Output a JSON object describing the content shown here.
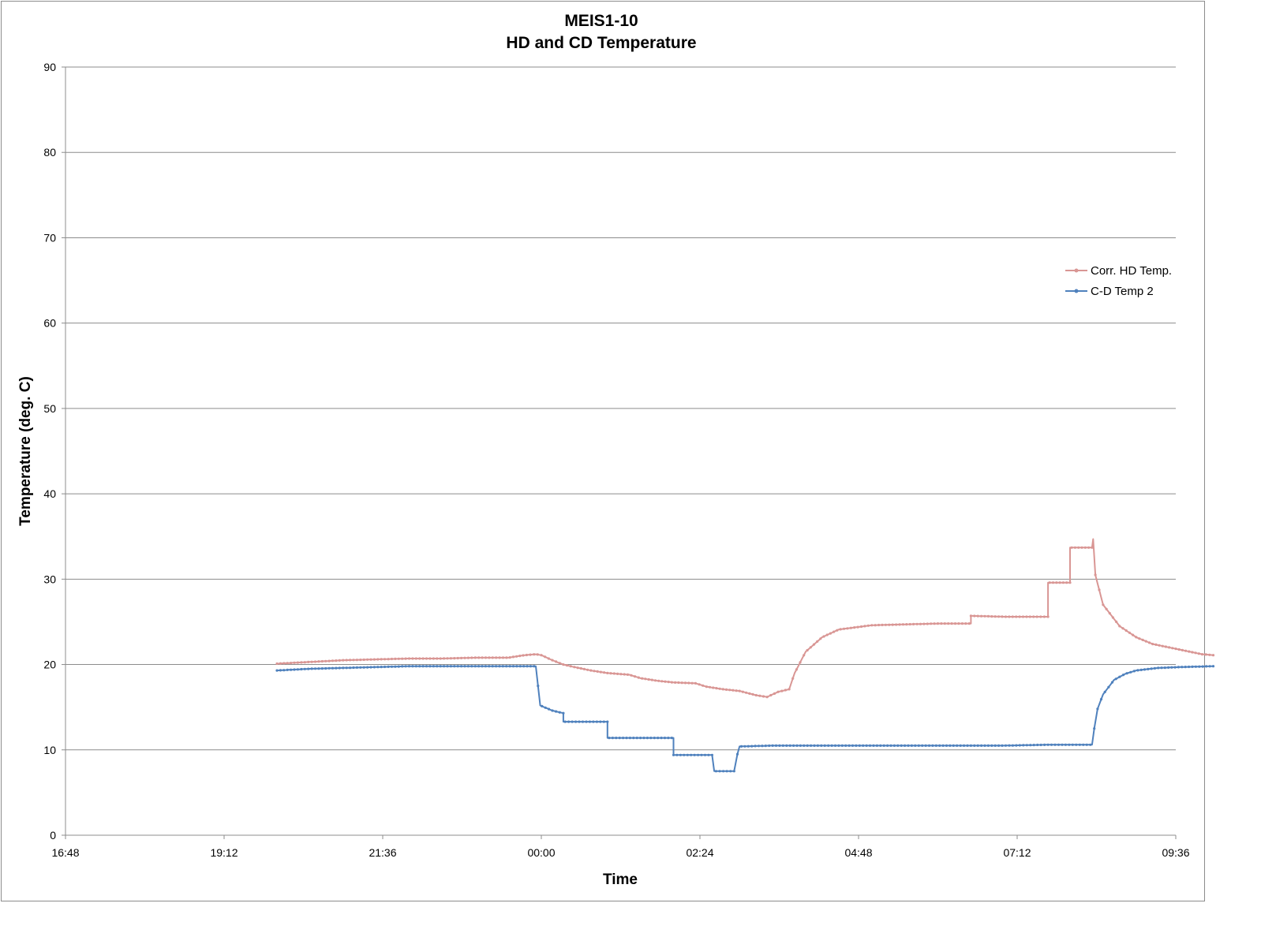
{
  "chart_data": {
    "type": "line",
    "title": [
      "MEIS1-10",
      "HD and CD Temperature"
    ],
    "xlabel": "Time",
    "ylabel": "Temperature (deg. C)",
    "ylim": [
      0,
      90
    ],
    "yticks": [
      0,
      10,
      20,
      30,
      40,
      50,
      60,
      70,
      80,
      90
    ],
    "xlim": [
      "16:48",
      "09:36"
    ],
    "xticks": [
      "16:48",
      "19:12",
      "21:36",
      "00:00",
      "02:24",
      "04:48",
      "07:12",
      "09:36"
    ],
    "grid": true,
    "legend": "right",
    "series": [
      {
        "name": "Corr. HD Temp.",
        "color": "#d99694",
        "points": [
          [
            "20:00",
            20.1
          ],
          [
            "20:30",
            20.3
          ],
          [
            "21:00",
            20.5
          ],
          [
            "21:30",
            20.6
          ],
          [
            "22:00",
            20.7
          ],
          [
            "22:30",
            20.7
          ],
          [
            "23:00",
            20.8
          ],
          [
            "23:30",
            20.8
          ],
          [
            "23:45",
            21.1
          ],
          [
            "23:55",
            21.2
          ],
          [
            "00:00",
            21.1
          ],
          [
            "00:10",
            20.5
          ],
          [
            "00:20",
            20.0
          ],
          [
            "00:30",
            19.7
          ],
          [
            "00:45",
            19.3
          ],
          [
            "01:00",
            19.0
          ],
          [
            "01:20",
            18.8
          ],
          [
            "01:30",
            18.4
          ],
          [
            "01:45",
            18.1
          ],
          [
            "02:00",
            17.9
          ],
          [
            "02:20",
            17.8
          ],
          [
            "02:30",
            17.4
          ],
          [
            "02:45",
            17.1
          ],
          [
            "03:00",
            16.9
          ],
          [
            "03:15",
            16.4
          ],
          [
            "03:25",
            16.2
          ],
          [
            "03:35",
            16.8
          ],
          [
            "03:45",
            17.1
          ],
          [
            "03:50",
            19.0
          ],
          [
            "04:00",
            21.5
          ],
          [
            "04:15",
            23.2
          ],
          [
            "04:30",
            24.1
          ],
          [
            "05:00",
            24.6
          ],
          [
            "05:30",
            24.7
          ],
          [
            "06:00",
            24.8
          ],
          [
            "06:30",
            24.8
          ],
          [
            "06:30",
            25.7
          ],
          [
            "07:00",
            25.6
          ],
          [
            "07:30",
            25.6
          ],
          [
            "07:40",
            25.6
          ],
          [
            "07:40",
            29.6
          ],
          [
            "08:00",
            29.6
          ],
          [
            "08:00",
            33.7
          ],
          [
            "08:20",
            33.7
          ],
          [
            "08:21",
            34.7
          ],
          [
            "08:23",
            30.5
          ],
          [
            "08:30",
            27.0
          ],
          [
            "08:45",
            24.5
          ],
          [
            "09:00",
            23.2
          ],
          [
            "09:15",
            22.4
          ],
          [
            "09:30",
            22.0
          ],
          [
            "09:45",
            21.6
          ],
          [
            "10:00",
            21.2
          ],
          [
            "10:10",
            21.1
          ]
        ]
      },
      {
        "name": "C-D Temp 2",
        "color": "#4f81bd",
        "points": [
          [
            "20:00",
            19.3
          ],
          [
            "20:30",
            19.5
          ],
          [
            "21:00",
            19.6
          ],
          [
            "21:30",
            19.7
          ],
          [
            "22:00",
            19.8
          ],
          [
            "23:00",
            19.8
          ],
          [
            "23:55",
            19.8
          ],
          [
            "23:57",
            17.5
          ],
          [
            "23:59",
            15.2
          ],
          [
            "00:10",
            14.6
          ],
          [
            "00:20",
            14.3
          ],
          [
            "00:20",
            13.3
          ],
          [
            "01:00",
            13.3
          ],
          [
            "01:00",
            11.4
          ],
          [
            "02:00",
            11.4
          ],
          [
            "02:00",
            9.4
          ],
          [
            "02:35",
            9.4
          ],
          [
            "02:37",
            7.5
          ],
          [
            "02:55",
            7.5
          ],
          [
            "02:58",
            9.5
          ],
          [
            "03:00",
            10.4
          ],
          [
            "03:30",
            10.5
          ],
          [
            "04:00",
            10.5
          ],
          [
            "05:00",
            10.5
          ],
          [
            "06:00",
            10.5
          ],
          [
            "07:00",
            10.5
          ],
          [
            "07:40",
            10.6
          ],
          [
            "08:20",
            10.6
          ],
          [
            "08:22",
            12.5
          ],
          [
            "08:25",
            14.8
          ],
          [
            "08:30",
            16.5
          ],
          [
            "08:40",
            18.2
          ],
          [
            "08:50",
            18.9
          ],
          [
            "09:00",
            19.3
          ],
          [
            "09:20",
            19.6
          ],
          [
            "09:40",
            19.7
          ],
          [
            "10:10",
            19.8
          ]
        ]
      }
    ]
  }
}
